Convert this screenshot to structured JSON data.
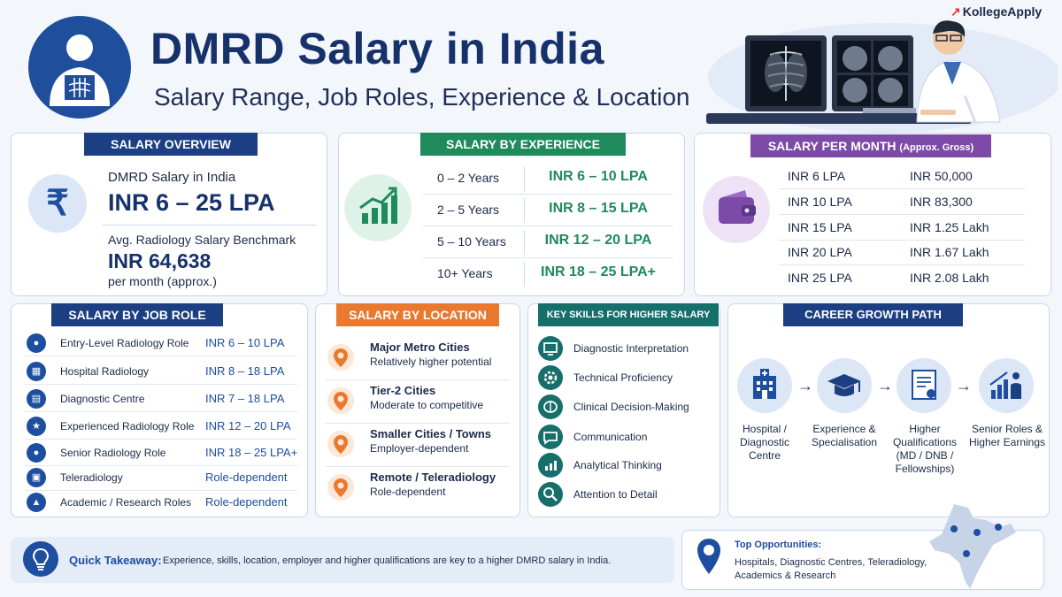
{
  "brand": {
    "name": "KollegeApply",
    "colors": {
      "primary": "#17326b",
      "accent": "#1d4ea0",
      "green": "#1f8a5b",
      "purple": "#7d4aa7",
      "orange": "#e8792e",
      "teal": "#176f6c"
    }
  },
  "header": {
    "title": "DMRD Salary in India",
    "subtitle": "Salary Range, Job Roles, Experience & Location"
  },
  "salary_overview": {
    "heading": "SALARY OVERVIEW",
    "label": "DMRD Salary in India",
    "range": "INR 6 – 25 LPA",
    "benchmark_label": "Avg. Radiology Salary Benchmark",
    "benchmark_value": "INR 64,638",
    "benchmark_note": "per month (approx.)",
    "icon": "rupee-icon",
    "symbol": "₹"
  },
  "salary_by_experience": {
    "heading": "SALARY BY EXPERIENCE",
    "icon": "growth-chart-icon",
    "rows": [
      {
        "years": "0 – 2 Years",
        "value": "INR 6 – 10 LPA"
      },
      {
        "years": "2 – 5 Years",
        "value": "INR 8 – 15 LPA"
      },
      {
        "years": "5 – 10 Years",
        "value": "INR 12 – 20 LPA"
      },
      {
        "years": "10+ Years",
        "value": "INR 18 – 25 LPA+"
      }
    ]
  },
  "salary_per_month": {
    "heading": "SALARY PER MONTH",
    "heading_note": "(Approx. Gross)",
    "icon": "wallet-icon",
    "rows": [
      {
        "annual": "INR 6 LPA",
        "monthly": "INR 50,000"
      },
      {
        "annual": "INR 10 LPA",
        "monthly": "INR 83,300"
      },
      {
        "annual": "INR 15 LPA",
        "monthly": "INR 1.25 Lakh"
      },
      {
        "annual": "INR 20 LPA",
        "monthly": "INR 1.67 Lakh"
      },
      {
        "annual": "INR 25 LPA",
        "monthly": "INR 2.08 Lakh"
      }
    ]
  },
  "salary_by_job_role": {
    "heading": "SALARY BY JOB ROLE",
    "rows": [
      {
        "role": "Entry-Level Radiology Role",
        "value": "INR 6 – 10 LPA",
        "icon": "person-icon",
        "glyph": "●"
      },
      {
        "role": "Hospital Radiology",
        "value": "INR 8 – 18 LPA",
        "icon": "hospital-icon",
        "glyph": "▦"
      },
      {
        "role": "Diagnostic Centre",
        "value": "INR 7 – 18 LPA",
        "icon": "scan-icon",
        "glyph": "▤"
      },
      {
        "role": "Experienced Radiology Role",
        "value": "INR 12 – 20 LPA",
        "icon": "star-icon",
        "glyph": "★"
      },
      {
        "role": "Senior Radiology Role",
        "value": "INR 18 – 25 LPA+",
        "icon": "doctor-icon",
        "glyph": "●"
      },
      {
        "role": "Teleradiology",
        "value": "Role-dependent",
        "icon": "monitor-icon",
        "glyph": "▣"
      },
      {
        "role": "Academic / Research Roles",
        "value": "Role-dependent",
        "icon": "graduate-icon",
        "glyph": "▲"
      }
    ]
  },
  "salary_by_location": {
    "heading": "SALARY BY LOCATION",
    "rows": [
      {
        "title": "Major Metro Cities",
        "desc": "Relatively higher potential",
        "icon": "location-pin-icon"
      },
      {
        "title": "Tier-2 Cities",
        "desc": "Moderate to competitive",
        "icon": "location-pin-icon"
      },
      {
        "title": "Smaller Cities / Towns",
        "desc": "Employer-dependent",
        "icon": "location-pin-icon"
      },
      {
        "title": "Remote / Teleradiology",
        "desc": "Role-dependent",
        "icon": "location-pin-icon"
      }
    ]
  },
  "key_skills": {
    "heading": "KEY SKILLS FOR HIGHER SALARY",
    "rows": [
      {
        "skill": "Diagnostic Interpretation",
        "icon": "monitor-icon"
      },
      {
        "skill": "Technical Proficiency",
        "icon": "gear-icon"
      },
      {
        "skill": "Clinical Decision-Making",
        "icon": "brain-icon"
      },
      {
        "skill": "Communication",
        "icon": "chat-icon"
      },
      {
        "skill": "Analytical Thinking",
        "icon": "analytics-icon"
      },
      {
        "skill": "Attention to Detail",
        "icon": "magnifier-icon"
      }
    ]
  },
  "career_growth": {
    "heading": "CAREER GROWTH PATH",
    "steps": [
      {
        "label": "Hospital / Diagnostic Centre",
        "icon": "hospital-icon"
      },
      {
        "label": "Experience & Specialisation",
        "icon": "graduation-cap-icon"
      },
      {
        "label": "Higher Qualifications (MD / DNB / Fellowships)",
        "icon": "certificate-icon"
      },
      {
        "label": "Senior Roles & Higher Earnings",
        "icon": "growth-person-icon"
      }
    ]
  },
  "takeaway": {
    "label": "Quick Takeaway:",
    "text": "Experience, skills, location, employer and higher qualifications are key to a higher DMRD salary in India.",
    "icon": "lightbulb-icon"
  },
  "opportunities": {
    "title": "Top Opportunities:",
    "text": "Hospitals, Diagnostic Centres, Teleradiology, Academics & Research",
    "icon": "location-pin-icon"
  }
}
